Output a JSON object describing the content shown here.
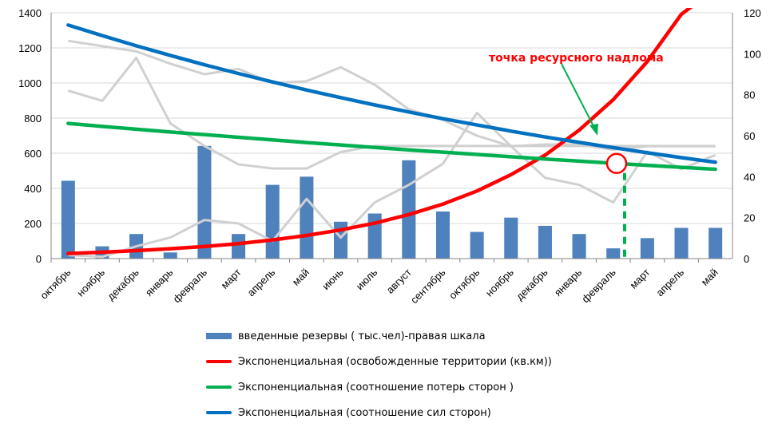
{
  "chart_data": {
    "type": "bar",
    "categories": [
      "октябрь",
      "ноябрь",
      "декабрь",
      "январь",
      "февраль",
      "март",
      "апрель",
      "май",
      "июнь",
      "июль",
      "август",
      "сентябрь",
      "октябрь",
      "ноябрь",
      "декабрь",
      "январь",
      "февраль",
      "март",
      "апрель",
      "май"
    ],
    "y_left": {
      "ylim": [
        0,
        1400
      ],
      "ticks": [
        "0",
        "200",
        "400",
        "600",
        "800",
        "1000",
        "1200",
        "1400"
      ]
    },
    "y_right": {
      "ylim": [
        0,
        120
      ],
      "ticks": [
        "0",
        "20",
        "40",
        "60",
        "80",
        "100",
        "120"
      ]
    },
    "bars": {
      "name": "введенные резервы ( тыс.чел)-правая шкала",
      "axis": "right",
      "color": "#4f81bd",
      "values": [
        38,
        6,
        12,
        3,
        55,
        12,
        36,
        40,
        18,
        22,
        48,
        23,
        13,
        20,
        16,
        12,
        5,
        10,
        15,
        15
      ]
    },
    "trend_lines": [
      {
        "name": "Экспоненциальная (освобожденные территории (кв.км))",
        "color": "#ff0000",
        "axis": "right",
        "values": [
          2.5,
          3.1,
          3.9,
          4.8,
          5.9,
          7.3,
          9.1,
          11.3,
          14.0,
          17.3,
          21.5,
          26.6,
          33.0,
          41,
          50.5,
          62.7,
          77.6,
          96.2,
          119.3,
          148
        ]
      },
      {
        "name": "Экспоненциальная (соотношение потерь сторон )",
        "color": "#00b050",
        "axis": "left",
        "values": [
          770,
          753,
          737,
          721,
          706,
          691,
          676,
          661,
          647,
          633,
          619,
          606,
          593,
          580,
          567,
          555,
          543,
          531,
          520,
          509
        ]
      },
      {
        "name": "Экспоненциальная (соотношение сил сторон)",
        "color": "#0070c0",
        "axis": "left",
        "values": [
          1330,
          1270,
          1212,
          1157,
          1104,
          1054,
          1006,
          960,
          917,
          875,
          835,
          797,
          761,
          726,
          693,
          662,
          632,
          603,
          575,
          549
        ]
      }
    ],
    "grey_series": [
      {
        "axis": "right",
        "values": [
          82,
          77,
          98,
          66,
          55,
          46,
          44,
          44,
          52,
          55,
          55,
          55,
          55,
          55,
          55,
          55,
          55,
          55,
          55,
          55
        ]
      },
      {
        "axis": "left",
        "values": [
          1240,
          1210,
          1180,
          1110,
          1050,
          1080,
          1000,
          1010,
          1090,
          990,
          850,
          790,
          700,
          640,
          650,
          650,
          620,
          640,
          640,
          640
        ]
      },
      {
        "axis": "left",
        "values": [
          20,
          10,
          70,
          120,
          220,
          200,
          100,
          340,
          120,
          320,
          420,
          540,
          830,
          640,
          460,
          420,
          320,
          610,
          510,
          590
        ]
      }
    ],
    "marker": {
      "series": 0,
      "index": 16.1,
      "color": "#ff0000"
    },
    "annotation": "точка ресурсного  надлома"
  },
  "legend": [
    {
      "label": "введенные резервы ( тыс.чел)-правая шкала",
      "color": "#4f81bd",
      "kind": "bar"
    },
    {
      "label": "Экспоненциальная (освобожденные территории (кв.км))",
      "color": "#ff0000",
      "kind": "line"
    },
    {
      "label": "Экспоненциальная (соотношение потерь сторон )",
      "color": "#00b050",
      "kind": "line"
    },
    {
      "label": "Экспоненциальная (соотношение сил сторон)",
      "color": "#0070c0",
      "kind": "line"
    }
  ]
}
